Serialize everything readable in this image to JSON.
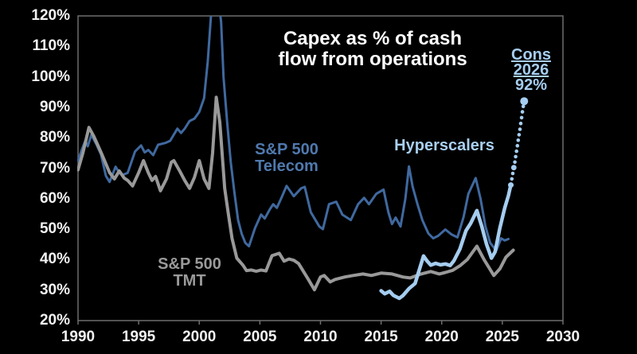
{
  "title": {
    "line1": "Capex as % of cash",
    "line2": "flow from operations"
  },
  "annotations": {
    "telecom_line1": "S&P 500",
    "telecom_line2": "Telecom",
    "tmt_line1": "S&P 500",
    "tmt_line2": "TMT",
    "hyperscalers": "Hyperscalers",
    "cons_line1": "Cons",
    "cons_line2": "2026",
    "cons_value": "92%"
  },
  "colors": {
    "background": "#000000",
    "axis": "#6e6e6e",
    "tick_text": "#f2f2f2",
    "title_text": "#ffffff",
    "telecom": "#40699f",
    "tmt": "#999999",
    "hyperscalers": "#a5cdf0",
    "consensus": "#a5cdf0"
  },
  "chart_data": {
    "type": "line",
    "title": "Capex as % of cash flow from operations",
    "xlabel": "",
    "ylabel": "Capex as % of cash flow from operations",
    "grid": false,
    "legend_position": "inline-labels",
    "x_axis": {
      "min": 1990,
      "max": 2030,
      "ticks": [
        {
          "v": 1990,
          "label": "1990"
        },
        {
          "v": 1995,
          "label": "1995"
        },
        {
          "v": 2000,
          "label": "2000"
        },
        {
          "v": 2005,
          "label": "2005"
        },
        {
          "v": 2010,
          "label": "2010"
        },
        {
          "v": 2015,
          "label": "2015"
        },
        {
          "v": 2020,
          "label": "2020"
        },
        {
          "v": 2025,
          "label": "2025"
        },
        {
          "v": 2030,
          "label": "2030"
        }
      ]
    },
    "y_axis": {
      "min": 20,
      "max": 120,
      "unit": "%",
      "ticks": [
        {
          "v": 120,
          "label": "120%"
        },
        {
          "v": 110,
          "label": "110%"
        },
        {
          "v": 100,
          "label": "100%"
        },
        {
          "v": 90,
          "label": "90%"
        },
        {
          "v": 80,
          "label": "80%"
        },
        {
          "v": 70,
          "label": "70%"
        },
        {
          "v": 60,
          "label": "60%"
        },
        {
          "v": 50,
          "label": "50%"
        },
        {
          "v": 40,
          "label": "40%"
        },
        {
          "v": 30,
          "label": "30%"
        },
        {
          "v": 20,
          "label": "20%"
        }
      ]
    },
    "series": [
      {
        "name": "S&P 500 Telecom",
        "color": "#40699f",
        "width": 3,
        "points": [
          [
            1990.0,
            72.5
          ],
          [
            1990.3,
            76
          ],
          [
            1990.6,
            79
          ],
          [
            1990.8,
            77.2
          ],
          [
            1991.1,
            81
          ],
          [
            1991.5,
            78
          ],
          [
            1991.9,
            74.5
          ],
          [
            1992.3,
            67.5
          ],
          [
            1992.6,
            65.5
          ],
          [
            1993.1,
            70.5
          ],
          [
            1993.4,
            68.5
          ],
          [
            1993.7,
            67.8
          ],
          [
            1994.1,
            68.5
          ],
          [
            1994.7,
            75.5
          ],
          [
            1995.2,
            77.5
          ],
          [
            1995.5,
            75.2
          ],
          [
            1995.8,
            76
          ],
          [
            1996.2,
            74.3
          ],
          [
            1996.6,
            77.7
          ],
          [
            1997.2,
            78.3
          ],
          [
            1997.6,
            79
          ],
          [
            1998.2,
            83
          ],
          [
            1998.5,
            81.6
          ],
          [
            1998.8,
            83
          ],
          [
            1999.2,
            85.5
          ],
          [
            1999.6,
            86.3
          ],
          [
            2000.0,
            88.5
          ],
          [
            2000.4,
            93
          ],
          [
            2000.7,
            105
          ],
          [
            2001.0,
            122
          ],
          [
            2001.2,
            130
          ],
          [
            2001.5,
            128
          ],
          [
            2001.8,
            118
          ],
          [
            2002.0,
            100
          ],
          [
            2002.3,
            85
          ],
          [
            2002.6,
            72
          ],
          [
            2002.9,
            62
          ],
          [
            2003.2,
            53
          ],
          [
            2003.5,
            48.5
          ],
          [
            2003.8,
            45.5
          ],
          [
            2004.1,
            44.4
          ],
          [
            2004.6,
            50.4
          ],
          [
            2005.1,
            54.8
          ],
          [
            2005.4,
            53.5
          ],
          [
            2005.8,
            56.4
          ],
          [
            2006.1,
            58.2
          ],
          [
            2006.4,
            57
          ],
          [
            2006.8,
            60.5
          ],
          [
            2007.2,
            64.2
          ],
          [
            2007.8,
            60.8
          ],
          [
            2008.4,
            63.4
          ],
          [
            2008.7,
            63.9
          ],
          [
            2009.2,
            55.6
          ],
          [
            2009.9,
            50.9
          ],
          [
            2010.2,
            50
          ],
          [
            2010.7,
            58.2
          ],
          [
            2011.3,
            59
          ],
          [
            2011.8,
            54.8
          ],
          [
            2012.5,
            53
          ],
          [
            2013.1,
            58.2
          ],
          [
            2013.6,
            60.3
          ],
          [
            2014.0,
            58.2
          ],
          [
            2014.6,
            61.6
          ],
          [
            2015.2,
            63
          ],
          [
            2015.6,
            55.5
          ],
          [
            2015.9,
            51.7
          ],
          [
            2016.2,
            53.8
          ],
          [
            2016.6,
            50.9
          ],
          [
            2017.0,
            60
          ],
          [
            2017.3,
            70.6
          ],
          [
            2017.6,
            64
          ],
          [
            2018.0,
            58.2
          ],
          [
            2018.4,
            53
          ],
          [
            2018.9,
            48.6
          ],
          [
            2019.3,
            47
          ],
          [
            2019.7,
            47.8
          ],
          [
            2020.3,
            49.9
          ],
          [
            2020.8,
            48.3
          ],
          [
            2021.3,
            47.3
          ],
          [
            2021.8,
            54
          ],
          [
            2022.2,
            61.6
          ],
          [
            2022.8,
            66.8
          ],
          [
            2023.2,
            60
          ],
          [
            2023.6,
            51
          ],
          [
            2024.0,
            45.5
          ],
          [
            2024.5,
            43
          ],
          [
            2024.9,
            47
          ],
          [
            2025.2,
            46.3
          ],
          [
            2025.5,
            46.8
          ]
        ]
      },
      {
        "name": "S&P 500 TMT",
        "color": "#999999",
        "width": 4,
        "points": [
          [
            1990.0,
            69.5
          ],
          [
            1990.4,
            75
          ],
          [
            1990.9,
            83.4
          ],
          [
            1991.3,
            80.5
          ],
          [
            1991.9,
            75.2
          ],
          [
            1992.6,
            68.6
          ],
          [
            1993.0,
            66.5
          ],
          [
            1993.4,
            69.1
          ],
          [
            1993.8,
            66.8
          ],
          [
            1994.1,
            66
          ],
          [
            1994.5,
            64.2
          ],
          [
            1995.0,
            68.5
          ],
          [
            1995.4,
            72.5
          ],
          [
            1995.8,
            68.5
          ],
          [
            1996.1,
            66
          ],
          [
            1996.4,
            67.3
          ],
          [
            1996.8,
            62.6
          ],
          [
            1997.3,
            66.5
          ],
          [
            1997.7,
            72
          ],
          [
            1997.9,
            72.5
          ],
          [
            1998.4,
            69
          ],
          [
            1998.8,
            66
          ],
          [
            1999.2,
            63.4
          ],
          [
            1999.6,
            67
          ],
          [
            2000.0,
            72.5
          ],
          [
            2000.4,
            66.5
          ],
          [
            2000.8,
            63.4
          ],
          [
            2001.1,
            75
          ],
          [
            2001.4,
            93.3
          ],
          [
            2001.7,
            85
          ],
          [
            2002.1,
            63.4
          ],
          [
            2002.4,
            55
          ],
          [
            2002.7,
            47
          ],
          [
            2003.1,
            40.5
          ],
          [
            2003.6,
            38.2
          ],
          [
            2003.9,
            36.4
          ],
          [
            2004.3,
            36.6
          ],
          [
            2004.7,
            36.2
          ],
          [
            2005.1,
            36.6
          ],
          [
            2005.5,
            36.3
          ],
          [
            2006.0,
            41.3
          ],
          [
            2006.6,
            42.1
          ],
          [
            2007.0,
            39.5
          ],
          [
            2007.4,
            40.2
          ],
          [
            2007.8,
            39.8
          ],
          [
            2008.2,
            38.7
          ],
          [
            2009.0,
            33.5
          ],
          [
            2009.5,
            30.1
          ],
          [
            2010.0,
            34.3
          ],
          [
            2010.3,
            34.8
          ],
          [
            2010.8,
            32.7
          ],
          [
            2011.2,
            33.5
          ],
          [
            2012.0,
            34.3
          ],
          [
            2012.7,
            34.8
          ],
          [
            2013.5,
            35.3
          ],
          [
            2014.2,
            34.8
          ],
          [
            2015.0,
            35.6
          ],
          [
            2015.9,
            35.3
          ],
          [
            2016.8,
            34.3
          ],
          [
            2017.4,
            34
          ],
          [
            2018.3,
            35.3
          ],
          [
            2019.1,
            36.1
          ],
          [
            2019.8,
            35.3
          ],
          [
            2020.3,
            35.8
          ],
          [
            2020.9,
            36.5
          ],
          [
            2021.5,
            38
          ],
          [
            2022.1,
            40
          ],
          [
            2022.9,
            44.4
          ],
          [
            2023.5,
            40
          ],
          [
            2024.3,
            34.8
          ],
          [
            2024.8,
            37
          ],
          [
            2025.3,
            40.8
          ],
          [
            2025.9,
            43.1
          ]
        ]
      },
      {
        "name": "Hyperscalers",
        "color": "#a5cdf0",
        "width": 4.5,
        "end_dot": {
          "year": 2025.7,
          "value": 64.5,
          "r": 3.5
        },
        "points": [
          [
            2015.0,
            29.8
          ],
          [
            2015.3,
            28.8
          ],
          [
            2015.7,
            29.6
          ],
          [
            2016.0,
            28.3
          ],
          [
            2016.5,
            27.3
          ],
          [
            2016.8,
            28.2
          ],
          [
            2017.3,
            30.5
          ],
          [
            2017.8,
            32.2
          ],
          [
            2018.1,
            36
          ],
          [
            2018.5,
            41.2
          ],
          [
            2018.8,
            39.5
          ],
          [
            2019.1,
            38.2
          ],
          [
            2019.5,
            38.8
          ],
          [
            2019.9,
            38.3
          ],
          [
            2020.3,
            38.6
          ],
          [
            2020.7,
            38.1
          ],
          [
            2021.0,
            39.6
          ],
          [
            2021.5,
            43.5
          ],
          [
            2022.0,
            49.5
          ],
          [
            2022.4,
            52
          ],
          [
            2022.9,
            56.1
          ],
          [
            2023.3,
            51
          ],
          [
            2023.7,
            45
          ],
          [
            2024.1,
            40.5
          ],
          [
            2024.4,
            42.5
          ],
          [
            2024.8,
            50.4
          ],
          [
            2025.2,
            57
          ],
          [
            2025.5,
            61
          ],
          [
            2025.7,
            64.5
          ]
        ]
      }
    ],
    "projection": {
      "name": "Hyperscalers consensus 2026",
      "color": "#a5cdf0",
      "style": "dotted",
      "label": "Cons 2026 92%",
      "end_year": 2026.8,
      "end_value": 92,
      "dot_r": 2.3,
      "points": [
        [
          2025.78,
          66.5
        ],
        [
          2025.86,
          68.3
        ],
        [
          2025.95,
          70.2
        ],
        [
          2026.03,
          72
        ],
        [
          2026.1,
          73.8
        ],
        [
          2026.17,
          75.6
        ],
        [
          2026.24,
          77.4
        ],
        [
          2026.31,
          79.2
        ],
        [
          2026.38,
          81
        ],
        [
          2026.45,
          82.8
        ],
        [
          2026.52,
          84.7
        ],
        [
          2026.59,
          86.6
        ],
        [
          2026.66,
          88.5
        ],
        [
          2026.73,
          90.3
        ],
        [
          2026.8,
          92
        ]
      ],
      "markers": [
        {
          "year": 2025.95,
          "value": 70.2,
          "r": 3.4
        },
        {
          "year": 2026.8,
          "value": 92,
          "r": 5
        }
      ]
    }
  }
}
